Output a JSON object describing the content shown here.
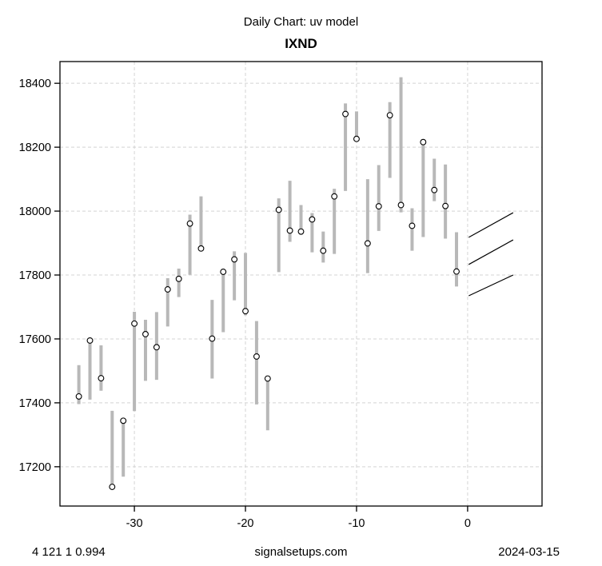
{
  "header": {
    "subtitle": "Daily Chart: uv model",
    "title": "IXND"
  },
  "footer": {
    "left": "4 121 1 0.994",
    "center": "signalsetups.com",
    "right": "2024-03-15"
  },
  "chart_data": {
    "type": "hlc-bar",
    "title": "IXND",
    "subtitle": "Daily Chart: uv model",
    "xlabel": "",
    "ylabel": "",
    "grid": true,
    "x_ticks": [
      -30,
      -20,
      -10,
      0
    ],
    "y_ticks": [
      17200,
      17400,
      17600,
      17800,
      18000,
      18200,
      18400
    ],
    "xlim": [
      -36.7,
      6.7
    ],
    "ylim": [
      17077,
      18468
    ],
    "bars": [
      {
        "x": -35,
        "high": 17518,
        "low": 17396,
        "close": 17420
      },
      {
        "x": -34,
        "high": 17601,
        "low": 17410,
        "close": 17595
      },
      {
        "x": -33,
        "high": 17580,
        "low": 17438,
        "close": 17477
      },
      {
        "x": -32,
        "high": 17375,
        "low": 17130,
        "close": 17137
      },
      {
        "x": -31,
        "high": 17350,
        "low": 17169,
        "close": 17344
      },
      {
        "x": -30,
        "high": 17685,
        "low": 17374,
        "close": 17648
      },
      {
        "x": -29,
        "high": 17660,
        "low": 17469,
        "close": 17615
      },
      {
        "x": -28,
        "high": 17684,
        "low": 17472,
        "close": 17574
      },
      {
        "x": -27,
        "high": 17790,
        "low": 17639,
        "close": 17755
      },
      {
        "x": -26,
        "high": 17820,
        "low": 17731,
        "close": 17788
      },
      {
        "x": -25,
        "high": 17989,
        "low": 17801,
        "close": 17961
      },
      {
        "x": -24,
        "high": 18046,
        "low": 17874,
        "close": 17883
      },
      {
        "x": -23,
        "high": 17722,
        "low": 17476,
        "close": 17601
      },
      {
        "x": -22,
        "high": 17814,
        "low": 17621,
        "close": 17810
      },
      {
        "x": -21,
        "high": 17874,
        "low": 17721,
        "close": 17849
      },
      {
        "x": -20,
        "high": 17869,
        "low": 17674,
        "close": 17687
      },
      {
        "x": -19,
        "high": 17656,
        "low": 17395,
        "close": 17545
      },
      {
        "x": -18,
        "high": 17479,
        "low": 17314,
        "close": 17476
      },
      {
        "x": -17,
        "high": 18040,
        "low": 17809,
        "close": 18004
      },
      {
        "x": -16,
        "high": 18095,
        "low": 17904,
        "close": 17939
      },
      {
        "x": -15,
        "high": 18019,
        "low": 17926,
        "close": 17936
      },
      {
        "x": -14,
        "high": 17994,
        "low": 17871,
        "close": 17974
      },
      {
        "x": -13,
        "high": 17936,
        "low": 17839,
        "close": 17876
      },
      {
        "x": -12,
        "high": 18070,
        "low": 17866,
        "close": 18046
      },
      {
        "x": -11,
        "high": 18337,
        "low": 18063,
        "close": 18304
      },
      {
        "x": -10,
        "high": 18312,
        "low": 18218,
        "close": 18226
      },
      {
        "x": -9,
        "high": 18100,
        "low": 17806,
        "close": 17899
      },
      {
        "x": -8,
        "high": 18144,
        "low": 17938,
        "close": 18015
      },
      {
        "x": -7,
        "high": 18341,
        "low": 18104,
        "close": 18300
      },
      {
        "x": -6,
        "high": 18419,
        "low": 17996,
        "close": 18019
      },
      {
        "x": -5,
        "high": 18009,
        "low": 17876,
        "close": 17954
      },
      {
        "x": -4,
        "high": 18221,
        "low": 17919,
        "close": 18216
      },
      {
        "x": -3,
        "high": 18164,
        "low": 18031,
        "close": 18066
      },
      {
        "x": -2,
        "high": 18146,
        "low": 17914,
        "close": 18016
      },
      {
        "x": -1,
        "high": 17934,
        "low": 17764,
        "close": 17811
      }
    ],
    "forecast_lines": [
      {
        "x1": 0.1,
        "y1": 17918,
        "x2": 4.1,
        "y2": 17995
      },
      {
        "x1": 0.1,
        "y1": 17833,
        "x2": 4.1,
        "y2": 17910
      },
      {
        "x1": 0.1,
        "y1": 17735,
        "x2": 4.1,
        "y2": 17800
      }
    ],
    "colors": {
      "bar": "#b8b8b8",
      "grid": "#d4d4d4",
      "marker_stroke": "#000000",
      "marker_fill": "#ffffff",
      "forecast_line": "#000000",
      "axis": "#000000"
    }
  }
}
